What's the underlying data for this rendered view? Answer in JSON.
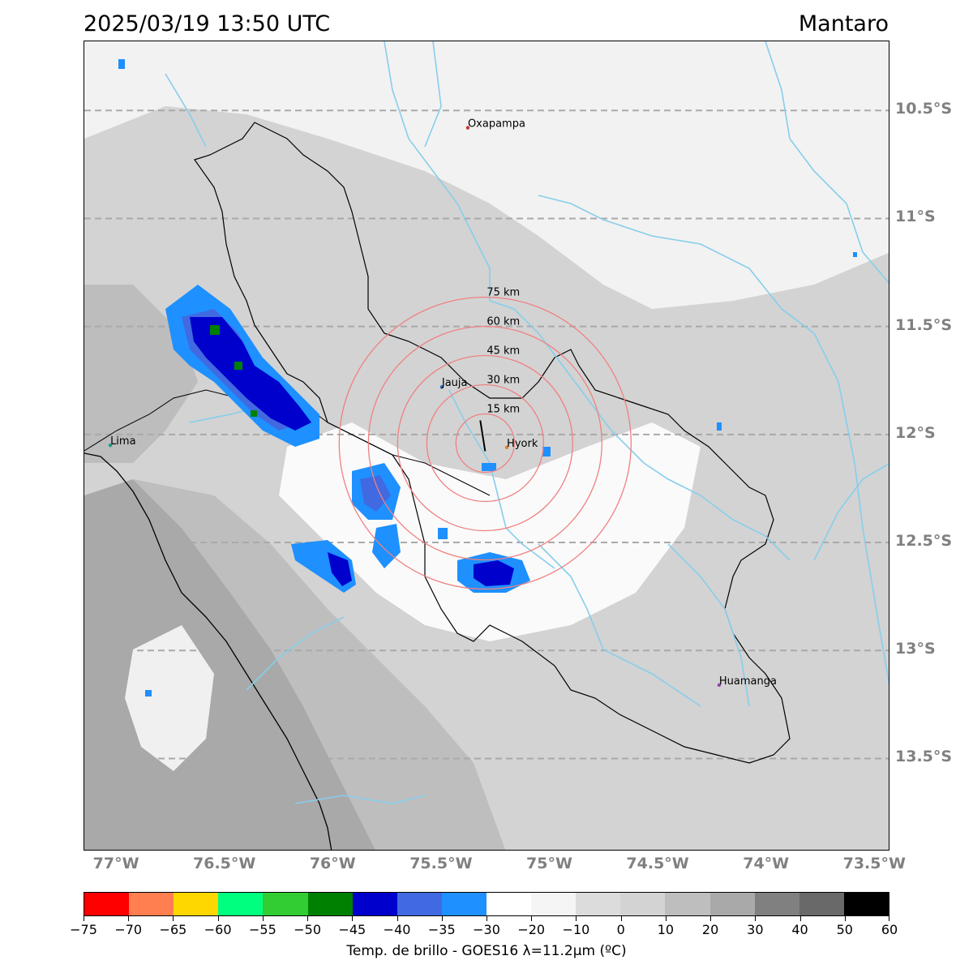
{
  "header": {
    "timestamp": "2025/03/19 13:50 UTC",
    "region": "Mantaro"
  },
  "map": {
    "cities": [
      {
        "name": "Oxapampa",
        "lon": -75.38,
        "lat": -10.58,
        "color": "#c0392b"
      },
      {
        "name": "Jauja",
        "lon": -75.5,
        "lat": -11.78,
        "color": "#2c6fbf"
      },
      {
        "name": "Hyork",
        "lon": -75.2,
        "lat": -12.06,
        "color": "#e67e22"
      },
      {
        "name": "Lima",
        "lon": -77.03,
        "lat": -12.05,
        "color": "#16a085"
      },
      {
        "name": "Huamanga",
        "lon": -74.22,
        "lat": -13.16,
        "color": "#8e44ad"
      }
    ],
    "range_rings": {
      "center": {
        "lon": -75.3,
        "lat": -12.04
      },
      "radii_km": [
        15,
        30,
        45,
        60,
        75
      ],
      "labels": [
        "15 km",
        "30 km",
        "45 km",
        "60 km",
        "75 km"
      ],
      "color": "#f08080"
    },
    "lat_labels": [
      {
        "lat": -10.5,
        "text": "10.5°S"
      },
      {
        "lat": -11.0,
        "text": "11°S"
      },
      {
        "lat": -11.5,
        "text": "11.5°S"
      },
      {
        "lat": -12.0,
        "text": "12°S"
      },
      {
        "lat": -12.5,
        "text": "12.5°S"
      },
      {
        "lat": -13.0,
        "text": "13°S"
      },
      {
        "lat": -13.5,
        "text": "13.5°S"
      }
    ],
    "lon_labels": [
      {
        "lon": -77.0,
        "text": "77°W"
      },
      {
        "lon": -76.5,
        "text": "76.5°W"
      },
      {
        "lon": -76.0,
        "text": "76°W"
      },
      {
        "lon": -75.5,
        "text": "75.5°W"
      },
      {
        "lon": -75.0,
        "text": "75°W"
      },
      {
        "lon": -74.5,
        "text": "74.5°W"
      },
      {
        "lon": -74.0,
        "text": "74°W"
      },
      {
        "lon": -73.5,
        "text": "73.5°W"
      }
    ],
    "extent": {
      "lon_min": -77.15,
      "lon_max": -73.43,
      "lat_max": -10.18,
      "lat_min": -13.93
    },
    "gridline_color": "#a9a9a9",
    "river_color": "#87ceeb",
    "basin_outline_color": "#000000"
  },
  "colorbar": {
    "title": "Temp. de brillo - GOES16 λ=11.2μm (ºC)",
    "bins": [
      {
        "from": -75,
        "to": -70,
        "color": "#ff0000"
      },
      {
        "from": -70,
        "to": -65,
        "color": "#ff7f50"
      },
      {
        "from": -65,
        "to": -60,
        "color": "#ffd700"
      },
      {
        "from": -60,
        "to": -55,
        "color": "#00ff7f"
      },
      {
        "from": -55,
        "to": -50,
        "color": "#32cd32"
      },
      {
        "from": -50,
        "to": -45,
        "color": "#008000"
      },
      {
        "from": -45,
        "to": -40,
        "color": "#0000cd"
      },
      {
        "from": -40,
        "to": -35,
        "color": "#4169e1"
      },
      {
        "from": -35,
        "to": -30,
        "color": "#1e90ff"
      },
      {
        "from": -30,
        "to": -20,
        "color": "#ffffff"
      },
      {
        "from": -20,
        "to": -10,
        "color": "#f5f5f5"
      },
      {
        "from": -10,
        "to": 0,
        "color": "#dcdcdc"
      },
      {
        "from": 0,
        "to": 10,
        "color": "#d3d3d3"
      },
      {
        "from": 10,
        "to": 20,
        "color": "#bebebe"
      },
      {
        "from": 20,
        "to": 30,
        "color": "#a9a9a9"
      },
      {
        "from": 30,
        "to": 40,
        "color": "#808080"
      },
      {
        "from": 40,
        "to": 50,
        "color": "#696969"
      },
      {
        "from": 50,
        "to": 60,
        "color": "#000000"
      }
    ],
    "tick_labels": [
      "−75",
      "−70",
      "−65",
      "−60",
      "−55",
      "−50",
      "−45",
      "−40",
      "−35",
      "−30",
      "−20",
      "−10",
      "0",
      "10",
      "20",
      "30",
      "40",
      "50",
      "60"
    ]
  }
}
